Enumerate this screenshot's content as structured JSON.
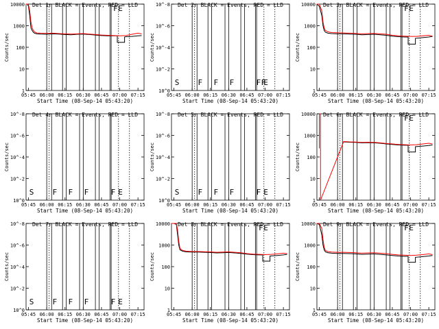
{
  "figure": {
    "start_time_label": "Start Time (08-Sep-14 05:43:20)",
    "ylabel": "Counts/sec"
  },
  "chart_data": [
    {
      "type": "line",
      "panel": "1",
      "title": "Det 1r BLACK = Events, RED = LLD",
      "xlabel": "Start Time (08-Sep-14 05:43:20)",
      "ylabel": "Counts/sec",
      "scale": "log",
      "y_ticks": [
        "1",
        "10",
        "100",
        "1000",
        "10000"
      ],
      "x_ticks": [
        "05:45",
        "06:00",
        "06:15",
        "06:30",
        "06:45",
        "07:00",
        "07:15"
      ],
      "has_data": true,
      "annotations": [
        "F",
        "E"
      ],
      "series": [
        {
          "name": "Events",
          "color": "#000000",
          "x": [
            "05:43",
            "05:44",
            "05:45",
            "05:46",
            "05:47",
            "05:48",
            "05:49",
            "05:50",
            "05:51",
            "05:52",
            "05:55",
            "06:00",
            "06:05",
            "06:10",
            "06:15",
            "06:20",
            "06:25",
            "06:30",
            "06:35",
            "06:40",
            "06:45",
            "06:50",
            "06:55",
            "06:58",
            "06:58",
            "07:04",
            "07:04",
            "07:05",
            "07:10",
            "07:15",
            "07:18"
          ],
          "values": [
            10000,
            10000,
            8000,
            3000,
            800,
            600,
            500,
            450,
            430,
            420,
            410,
            400,
            420,
            410,
            390,
            380,
            400,
            410,
            390,
            370,
            350,
            340,
            340,
            340,
            170,
            170,
            300,
            310,
            320,
            340,
            350
          ]
        },
        {
          "name": "LLD",
          "color": "#ff0000",
          "x": [
            "05:43",
            "05:44",
            "05:45",
            "05:46",
            "05:47",
            "05:48",
            "05:49",
            "05:50",
            "05:51",
            "05:52",
            "05:55",
            "06:00",
            "06:05",
            "06:10",
            "06:15",
            "06:20",
            "06:25",
            "06:30",
            "06:35",
            "06:40",
            "06:45",
            "06:50",
            "06:55",
            "07:00",
            "07:05",
            "07:10",
            "07:15",
            "07:18"
          ],
          "values": [
            10000,
            10000,
            9500,
            5000,
            1500,
            800,
            600,
            520,
            480,
            460,
            450,
            440,
            450,
            430,
            420,
            410,
            420,
            430,
            410,
            390,
            370,
            360,
            350,
            340,
            350,
            400,
            450,
            420
          ]
        }
      ]
    },
    {
      "type": "line",
      "panel": "2",
      "title": "Det 2r BLACK = Events, RED = LLD",
      "xlabel": "Start Time (08-Sep-14 05:43:20)",
      "ylabel": "Counts/sec",
      "scale": "log",
      "y_ticks": [
        "10^0",
        "10^-2",
        "10^-4",
        "10^-6",
        "10^-8"
      ],
      "x_ticks": [
        "05:45",
        "06:00",
        "06:15",
        "06:30",
        "06:45",
        "07:00",
        "07:15"
      ],
      "has_data": false,
      "annotations": [
        "S",
        "F",
        "F",
        "F",
        "F",
        "F",
        "E"
      ]
    },
    {
      "type": "line",
      "panel": "3",
      "title": "Det 3r BLACK = Events, RED = LLD",
      "xlabel": "Start Time (08-Sep-14 05:43:20)",
      "ylabel": "Counts/sec",
      "scale": "log",
      "y_ticks": [
        "1",
        "10",
        "100",
        "1000",
        "10000"
      ],
      "x_ticks": [
        "05:45",
        "06:00",
        "06:15",
        "06:30",
        "06:45",
        "07:00",
        "07:15"
      ],
      "has_data": true,
      "annotations": [
        "F",
        "E"
      ],
      "series": [
        {
          "name": "Events",
          "color": "#000000",
          "x": [
            "05:43",
            "05:45",
            "05:47",
            "05:48",
            "05:49",
            "05:50",
            "05:52",
            "05:55",
            "06:00",
            "06:05",
            "06:10",
            "06:15",
            "06:20",
            "06:25",
            "06:30",
            "06:35",
            "06:40",
            "06:45",
            "06:50",
            "06:55",
            "06:58",
            "06:58",
            "07:04",
            "07:04",
            "07:10",
            "07:15",
            "07:18"
          ],
          "values": [
            10000,
            8000,
            3000,
            1000,
            600,
            500,
            450,
            430,
            420,
            420,
            410,
            400,
            380,
            390,
            400,
            380,
            360,
            330,
            310,
            300,
            300,
            140,
            140,
            260,
            280,
            300,
            320
          ]
        },
        {
          "name": "LLD",
          "color": "#ff0000",
          "x": [
            "05:43",
            "05:45",
            "05:47",
            "05:48",
            "05:49",
            "05:50",
            "05:52",
            "05:55",
            "06:00",
            "06:05",
            "06:10",
            "06:15",
            "06:20",
            "06:25",
            "06:30",
            "06:35",
            "06:40",
            "06:45",
            "06:50",
            "06:55",
            "07:00",
            "07:05",
            "07:10",
            "07:15",
            "07:18"
          ],
          "values": [
            10000,
            10000,
            5000,
            1500,
            800,
            600,
            520,
            480,
            470,
            460,
            450,
            440,
            420,
            430,
            440,
            420,
            400,
            360,
            340,
            330,
            320,
            320,
            340,
            360,
            330
          ]
        }
      ]
    },
    {
      "type": "line",
      "panel": "4",
      "title": "Det 4r BLACK = Events, RED = LLD",
      "xlabel": "Start Time (08-Sep-14 05:43:20)",
      "ylabel": "Counts/sec",
      "scale": "log",
      "y_ticks": [
        "10^0",
        "10^-2",
        "10^-4",
        "10^-6",
        "10^-8"
      ],
      "x_ticks": [
        "05:45",
        "06:00",
        "06:15",
        "06:30",
        "06:45",
        "07:00",
        "07:15"
      ],
      "has_data": false,
      "annotations": [
        "S",
        "F",
        "F",
        "F",
        "F",
        "E"
      ]
    },
    {
      "type": "line",
      "panel": "5",
      "title": "Det 5r BLACK = Events, RED = LLD",
      "xlabel": "Start Time (08-Sep-14 05:43:20)",
      "ylabel": "Counts/sec",
      "scale": "log",
      "y_ticks": [
        "10^0",
        "10^-2",
        "10^-4",
        "10^-6",
        "10^-8"
      ],
      "x_ticks": [
        "05:45",
        "06:00",
        "06:15",
        "06:30",
        "06:45",
        "07:00",
        "07:15"
      ],
      "has_data": false,
      "annotations": [
        "S",
        "F",
        "F",
        "F",
        "F",
        "E"
      ]
    },
    {
      "type": "line",
      "panel": "6",
      "title": "Det 6r BLACK = Events, RED = LLD",
      "xlabel": "Start Time (08-Sep-14 05:43:20)",
      "ylabel": "Counts/sec",
      "scale": "log",
      "y_ticks": [
        "1",
        "10",
        "100",
        "1000",
        "10000"
      ],
      "x_ticks": [
        "05:45",
        "06:00",
        "06:15",
        "06:30",
        "06:45",
        "07:00",
        "07:15"
      ],
      "has_data": true,
      "annotations": [
        "F",
        "E"
      ],
      "series": [
        {
          "name": "Events",
          "color": "#000000",
          "x": [
            "06:05",
            "06:10",
            "06:15",
            "06:20",
            "06:25",
            "06:30",
            "06:35",
            "06:40",
            "06:45",
            "06:50",
            "06:55",
            "06:58",
            "06:58",
            "07:04",
            "07:04",
            "07:10",
            "07:15",
            "07:18"
          ],
          "values": [
            500,
            480,
            470,
            450,
            460,
            450,
            430,
            400,
            380,
            360,
            350,
            350,
            170,
            170,
            300,
            320,
            340,
            360
          ]
        },
        {
          "name": "LLD",
          "color": "#ff0000",
          "x": [
            "05:45",
            "05:45",
            "05:46",
            "05:46",
            "06:05",
            "06:10",
            "06:15",
            "06:20",
            "06:25",
            "06:30",
            "06:35",
            "06:40",
            "06:45",
            "06:50",
            "06:55",
            "07:00",
            "07:05",
            "07:10",
            "07:15",
            "07:18"
          ],
          "values": [
            250,
            10000,
            10000,
            1,
            520,
            500,
            490,
            470,
            480,
            470,
            450,
            420,
            400,
            380,
            370,
            360,
            370,
            400,
            430,
            400
          ]
        }
      ]
    },
    {
      "type": "line",
      "panel": "7",
      "title": "Det 7r BLACK = Events, RED = LLD",
      "xlabel": "Start Time (08-Sep-14 05:43:20)",
      "ylabel": "Counts/sec",
      "scale": "log",
      "y_ticks": [
        "10^0",
        "10^-2",
        "10^-4",
        "10^-6",
        "10^-8"
      ],
      "x_ticks": [
        "05:45",
        "06:00",
        "06:15",
        "06:30",
        "06:45",
        "07:00",
        "07:15"
      ],
      "has_data": false,
      "annotations": [
        "S",
        "F",
        "F",
        "F",
        "F",
        "E"
      ]
    },
    {
      "type": "line",
      "panel": "8",
      "title": "Det 8r BLACK = Events, RED = LLD",
      "xlabel": "Start Time (08-Sep-14 05:43:20)",
      "ylabel": "Counts/sec",
      "scale": "log",
      "y_ticks": [
        "1",
        "10",
        "100",
        "1000",
        "10000"
      ],
      "x_ticks": [
        "05:45",
        "06:00",
        "06:15",
        "06:30",
        "06:45",
        "07:00",
        "07:15"
      ],
      "has_data": true,
      "annotations": [
        "F",
        "E"
      ],
      "series": [
        {
          "name": "Events",
          "color": "#000000",
          "x": [
            "05:43",
            "05:45",
            "05:47",
            "05:48",
            "05:49",
            "05:50",
            "05:52",
            "05:55",
            "06:00",
            "06:05",
            "06:10",
            "06:15",
            "06:20",
            "06:25",
            "06:30",
            "06:35",
            "06:40",
            "06:45",
            "06:50",
            "06:55",
            "06:58",
            "06:58",
            "07:04",
            "07:04",
            "07:10",
            "07:15",
            "07:18"
          ],
          "values": [
            10000,
            10000,
            9000,
            3000,
            1000,
            600,
            520,
            480,
            470,
            470,
            460,
            450,
            430,
            440,
            450,
            430,
            410,
            380,
            360,
            350,
            350,
            180,
            180,
            310,
            330,
            350,
            370
          ]
        },
        {
          "name": "LLD",
          "color": "#ff0000",
          "x": [
            "05:43",
            "05:45",
            "05:47",
            "05:48",
            "05:49",
            "05:50",
            "05:52",
            "05:55",
            "06:00",
            "06:05",
            "06:10",
            "06:15",
            "06:20",
            "06:25",
            "06:30",
            "06:35",
            "06:40",
            "06:45",
            "06:50",
            "06:55",
            "07:00",
            "07:05",
            "07:10",
            "07:15",
            "07:18"
          ],
          "values": [
            10000,
            10000,
            10000,
            5000,
            1500,
            700,
            560,
            520,
            500,
            500,
            490,
            480,
            460,
            470,
            480,
            460,
            440,
            400,
            380,
            370,
            360,
            370,
            390,
            420,
            400
          ]
        }
      ]
    },
    {
      "type": "line",
      "panel": "9",
      "title": "Det 9r BLACK = Events, RED = LLD",
      "xlabel": "Start Time (08-Sep-14 05:43:20)",
      "ylabel": "Counts/sec",
      "scale": "log",
      "y_ticks": [
        "1",
        "10",
        "100",
        "1000",
        "10000"
      ],
      "x_ticks": [
        "05:45",
        "06:00",
        "06:15",
        "06:30",
        "06:45",
        "07:00",
        "07:15"
      ],
      "has_data": true,
      "annotations": [
        "F",
        "E"
      ],
      "series": [
        {
          "name": "Events",
          "color": "#000000",
          "x": [
            "05:43",
            "05:45",
            "05:47",
            "05:48",
            "05:49",
            "05:50",
            "05:52",
            "05:55",
            "06:00",
            "06:05",
            "06:10",
            "06:15",
            "06:20",
            "06:25",
            "06:30",
            "06:35",
            "06:40",
            "06:45",
            "06:50",
            "06:55",
            "06:58",
            "06:58",
            "07:04",
            "07:04",
            "07:10",
            "07:15",
            "07:18"
          ],
          "values": [
            10000,
            9000,
            3000,
            1000,
            600,
            480,
            440,
            420,
            410,
            410,
            400,
            390,
            370,
            380,
            390,
            370,
            350,
            330,
            310,
            300,
            300,
            160,
            160,
            270,
            290,
            310,
            330
          ]
        },
        {
          "name": "LLD",
          "color": "#ff0000",
          "x": [
            "05:43",
            "05:45",
            "05:47",
            "05:48",
            "05:49",
            "05:50",
            "05:52",
            "05:55",
            "06:00",
            "06:05",
            "06:10",
            "06:15",
            "06:20",
            "06:25",
            "06:30",
            "06:35",
            "06:40",
            "06:45",
            "06:50",
            "06:55",
            "07:00",
            "07:05",
            "07:10",
            "07:15",
            "07:18"
          ],
          "values": [
            10000,
            10000,
            6000,
            1800,
            800,
            560,
            500,
            470,
            460,
            460,
            450,
            440,
            420,
            430,
            440,
            420,
            400,
            370,
            350,
            340,
            330,
            340,
            360,
            390,
            360
          ]
        }
      ]
    }
  ]
}
